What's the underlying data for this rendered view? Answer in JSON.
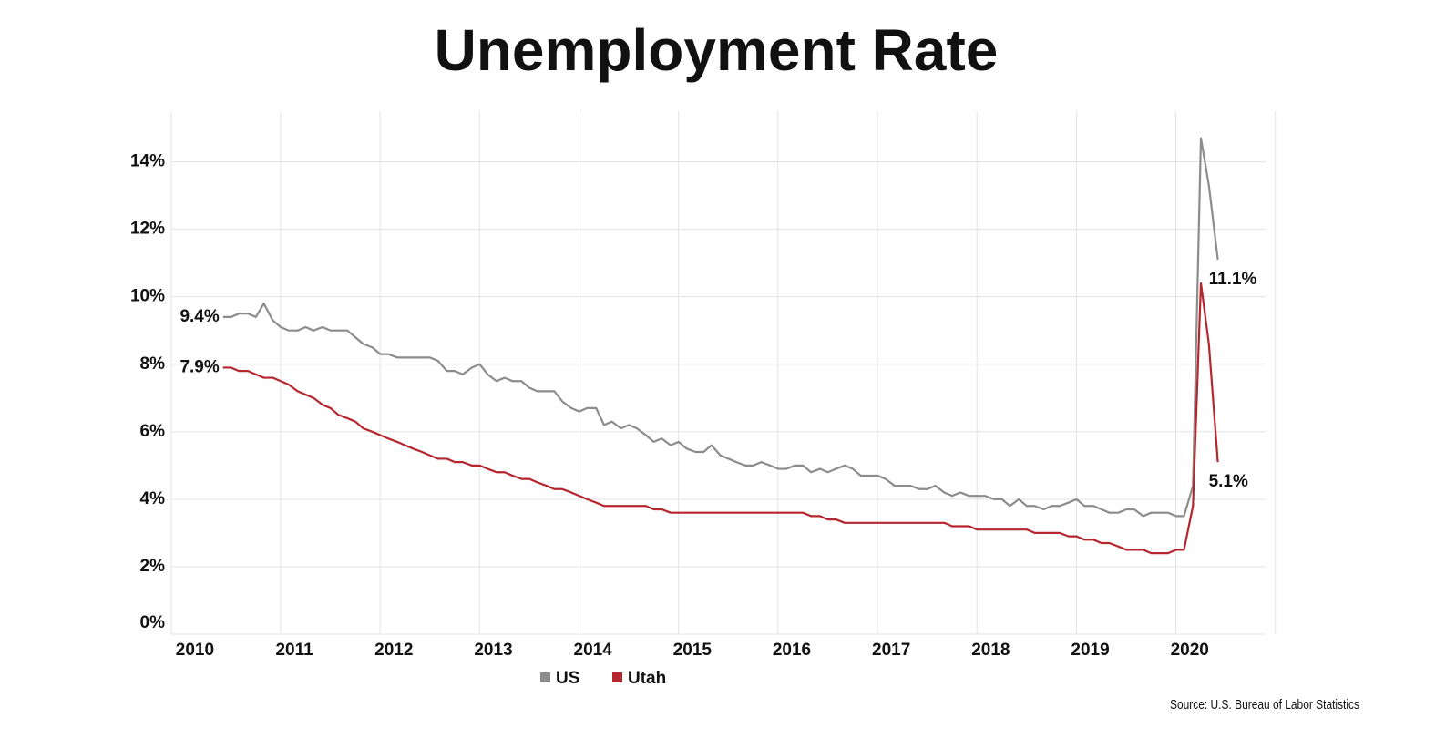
{
  "chart_data": {
    "type": "line",
    "title": "Unemployment Rate",
    "source": "Source: U.S. Bureau of Labor Statistics",
    "x": [
      2010.42,
      2010.5,
      2010.58,
      2010.67,
      2010.75,
      2010.83,
      2010.92,
      2011,
      2011.08,
      2011.17,
      2011.25,
      2011.33,
      2011.42,
      2011.5,
      2011.58,
      2011.67,
      2011.75,
      2011.83,
      2011.92,
      2012,
      2012.08,
      2012.17,
      2012.25,
      2012.33,
      2012.42,
      2012.5,
      2012.58,
      2012.67,
      2012.75,
      2012.83,
      2012.92,
      2013,
      2013.08,
      2013.17,
      2013.25,
      2013.33,
      2013.42,
      2013.5,
      2013.58,
      2013.67,
      2013.75,
      2013.83,
      2013.92,
      2014,
      2014.08,
      2014.17,
      2014.25,
      2014.33,
      2014.42,
      2014.5,
      2014.58,
      2014.67,
      2014.75,
      2014.83,
      2014.92,
      2015,
      2015.08,
      2015.17,
      2015.25,
      2015.33,
      2015.42,
      2015.5,
      2015.58,
      2015.67,
      2015.75,
      2015.83,
      2015.92,
      2016,
      2016.08,
      2016.17,
      2016.25,
      2016.33,
      2016.42,
      2016.5,
      2016.58,
      2016.67,
      2016.75,
      2016.83,
      2016.92,
      2017,
      2017.08,
      2017.17,
      2017.25,
      2017.33,
      2017.42,
      2017.5,
      2017.58,
      2017.67,
      2017.75,
      2017.83,
      2017.92,
      2018,
      2018.08,
      2018.17,
      2018.25,
      2018.33,
      2018.42,
      2018.5,
      2018.58,
      2018.67,
      2018.75,
      2018.83,
      2018.92,
      2019,
      2019.08,
      2019.17,
      2019.25,
      2019.33,
      2019.42,
      2019.5,
      2019.58,
      2019.67,
      2019.75,
      2019.83,
      2019.92,
      2020,
      2020.08,
      2020.17,
      2020.25,
      2020.33,
      2020.42
    ],
    "series": [
      {
        "name": "US",
        "color": "#8c8c8c",
        "values": [
          9.4,
          9.4,
          9.5,
          9.5,
          9.4,
          9.8,
          9.3,
          9.1,
          9.0,
          9.0,
          9.1,
          9.0,
          9.1,
          9.0,
          9.0,
          9.0,
          8.8,
          8.6,
          8.5,
          8.3,
          8.3,
          8.2,
          8.2,
          8.2,
          8.2,
          8.2,
          8.1,
          7.8,
          7.8,
          7.7,
          7.9,
          8.0,
          7.7,
          7.5,
          7.6,
          7.5,
          7.5,
          7.3,
          7.2,
          7.2,
          7.2,
          6.9,
          6.7,
          6.6,
          6.7,
          6.7,
          6.2,
          6.3,
          6.1,
          6.2,
          6.1,
          5.9,
          5.7,
          5.8,
          5.6,
          5.7,
          5.5,
          5.4,
          5.4,
          5.6,
          5.3,
          5.2,
          5.1,
          5.0,
          5.0,
          5.1,
          5.0,
          4.9,
          4.9,
          5.0,
          5.0,
          4.8,
          4.9,
          4.8,
          4.9,
          5.0,
          4.9,
          4.7,
          4.7,
          4.7,
          4.6,
          4.4,
          4.4,
          4.4,
          4.3,
          4.3,
          4.4,
          4.2,
          4.1,
          4.2,
          4.1,
          4.1,
          4.1,
          4.0,
          4.0,
          3.8,
          4.0,
          3.8,
          3.8,
          3.7,
          3.8,
          3.8,
          3.9,
          4.0,
          3.8,
          3.8,
          3.7,
          3.6,
          3.6,
          3.7,
          3.7,
          3.5,
          3.6,
          3.6,
          3.6,
          3.5,
          3.5,
          4.4,
          14.7,
          13.3,
          11.1
        ],
        "value_labels": [
          "9.4%",
          null,
          null,
          null,
          null,
          null,
          null,
          null,
          null,
          null,
          null,
          null,
          null,
          null,
          null,
          null,
          null,
          null,
          null,
          null,
          null,
          null,
          null,
          null,
          null,
          null,
          null,
          null,
          null,
          null,
          null,
          null,
          null,
          null,
          null,
          null,
          null,
          null,
          null,
          null,
          null,
          null,
          null,
          null,
          null,
          null,
          null,
          null,
          null,
          null,
          null,
          null,
          null,
          null,
          null,
          null,
          null,
          null,
          null,
          null,
          null,
          null,
          null,
          null,
          null,
          null,
          null,
          null,
          null,
          null,
          null,
          null,
          null,
          null,
          null,
          null,
          null,
          null,
          null,
          null,
          null,
          null,
          null,
          null,
          null,
          null,
          null,
          null,
          null,
          null,
          null,
          null,
          null,
          null,
          null,
          null,
          null,
          null,
          null,
          null,
          null,
          null,
          null,
          null,
          null,
          null,
          null,
          null,
          null,
          null,
          null,
          null,
          null,
          null,
          null,
          null,
          null,
          null,
          null,
          null,
          "11.1%"
        ]
      },
      {
        "name": "Utah",
        "color": "#b5262e",
        "values": [
          7.9,
          7.9,
          7.8,
          7.8,
          7.7,
          7.6,
          7.6,
          7.5,
          7.4,
          7.2,
          7.1,
          7.0,
          6.8,
          6.7,
          6.5,
          6.4,
          6.3,
          6.1,
          6.0,
          5.9,
          5.8,
          5.7,
          5.6,
          5.5,
          5.4,
          5.3,
          5.2,
          5.2,
          5.1,
          5.1,
          5.0,
          5.0,
          4.9,
          4.8,
          4.8,
          4.7,
          4.6,
          4.6,
          4.5,
          4.4,
          4.3,
          4.3,
          4.2,
          4.1,
          4.0,
          3.9,
          3.8,
          3.8,
          3.8,
          3.8,
          3.8,
          3.8,
          3.7,
          3.7,
          3.6,
          3.6,
          3.6,
          3.6,
          3.6,
          3.6,
          3.6,
          3.6,
          3.6,
          3.6,
          3.6,
          3.6,
          3.6,
          3.6,
          3.6,
          3.6,
          3.6,
          3.5,
          3.5,
          3.4,
          3.4,
          3.3,
          3.3,
          3.3,
          3.3,
          3.3,
          3.3,
          3.3,
          3.3,
          3.3,
          3.3,
          3.3,
          3.3,
          3.3,
          3.2,
          3.2,
          3.2,
          3.1,
          3.1,
          3.1,
          3.1,
          3.1,
          3.1,
          3.1,
          3.0,
          3.0,
          3.0,
          3.0,
          2.9,
          2.9,
          2.8,
          2.8,
          2.7,
          2.7,
          2.6,
          2.5,
          2.5,
          2.5,
          2.4,
          2.4,
          2.4,
          2.5,
          2.5,
          3.8,
          10.4,
          8.6,
          5.1
        ],
        "value_labels": [
          "7.9%",
          null,
          null,
          null,
          null,
          null,
          null,
          null,
          null,
          null,
          null,
          null,
          null,
          null,
          null,
          null,
          null,
          null,
          null,
          null,
          null,
          null,
          null,
          null,
          null,
          null,
          null,
          null,
          null,
          null,
          null,
          null,
          null,
          null,
          null,
          null,
          null,
          null,
          null,
          null,
          null,
          null,
          null,
          null,
          null,
          null,
          null,
          null,
          null,
          null,
          null,
          null,
          null,
          null,
          null,
          null,
          null,
          null,
          null,
          null,
          null,
          null,
          null,
          null,
          null,
          null,
          null,
          null,
          null,
          null,
          null,
          null,
          null,
          null,
          null,
          null,
          null,
          null,
          null,
          null,
          null,
          null,
          null,
          null,
          null,
          null,
          null,
          null,
          null,
          null,
          null,
          null,
          null,
          null,
          null,
          null,
          null,
          null,
          null,
          null,
          null,
          null,
          null,
          null,
          null,
          null,
          null,
          null,
          null,
          null,
          null,
          null,
          null,
          null,
          null,
          null,
          null,
          null,
          null,
          null,
          "5.1%"
        ]
      }
    ],
    "xlim": [
      2009.9,
      2020.9
    ],
    "xticks": [
      2010,
      2011,
      2012,
      2013,
      2014,
      2015,
      2016,
      2017,
      2018,
      2019,
      2020
    ],
    "ylim": [
      0,
      15.5
    ],
    "yticks": [
      {
        "value": 0,
        "label": "0%"
      },
      {
        "value": 2,
        "label": "2%"
      },
      {
        "value": 4,
        "label": "4%"
      },
      {
        "value": 6,
        "label": "6%"
      },
      {
        "value": 8,
        "label": "8%"
      },
      {
        "value": 10,
        "label": "10%"
      },
      {
        "value": 12,
        "label": "12%"
      },
      {
        "value": 14,
        "label": "14%"
      }
    ],
    "grid": true,
    "legend": "bottom"
  }
}
